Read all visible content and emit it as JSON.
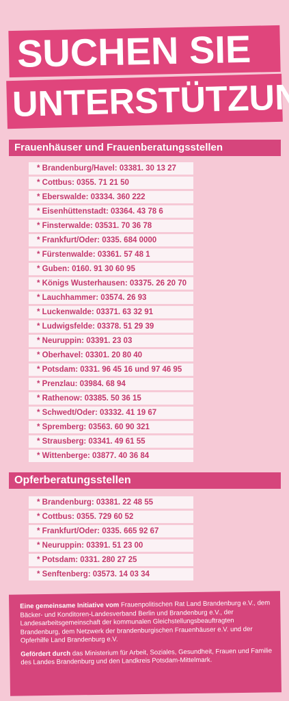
{
  "headline": {
    "line1": "SUCHEN SIE",
    "line2": "UNTERSTÜTZUNG?"
  },
  "section1": {
    "title": "Frauenhäuser und Frauenberatungsstellen",
    "items": [
      "* Brandenburg/Havel: 03381. 30 13 27",
      "* Cottbus: 0355. 71 21 50",
      "* Eberswalde: 03334. 360 222",
      "* Eisenhüttenstadt: 03364. 43 78 6",
      "* Finsterwalde: 03531. 70 36 78",
      "* Frankfurt/Oder: 0335. 684 0000",
      "* Fürstenwalde: 03361. 57 48 1",
      "* Guben: 0160. 91 30 60 95",
      "* Königs Wusterhausen: 03375. 26 20 70",
      "* Lauchhammer: 03574. 26 93",
      "* Luckenwalde: 03371. 63 32 91",
      "* Ludwigsfelde: 03378. 51 29 39",
      "* Neuruppin: 03391. 23 03",
      "* Oberhavel: 03301. 20 80 40",
      "* Potsdam: 0331. 96 45 16 und 97 46 95",
      "* Prenzlau: 03984. 68 94",
      "* Rathenow: 03385. 50 36 15",
      "* Schwedt/Oder: 03332. 41 19 67",
      "* Spremberg: 03563. 60 90 321",
      "* Strausberg: 03341. 49 61 55",
      "* Wittenberge: 03877. 40 36 84"
    ]
  },
  "section2": {
    "title": "Opferberatungsstellen",
    "items": [
      "* Brandenburg: 03381. 22 48 55",
      "* Cottbus: 0355. 729 60 52",
      "* Frankfurt/Oder: 0335. 665 92 67",
      "* Neuruppin: 03391. 51 23 00",
      "* Potsdam: 0331. 280 27 25",
      "* Senftenberg: 03573. 14 03 34"
    ]
  },
  "footer": {
    "initiative_label": "Eine gemeinsame Initiative vom",
    "initiative_text": "Frauenpolitischen Rat Land Brandenburg e.V., dem Bäcker- und Konditoren-Landesverband Berlin und Brandenburg e.V., der Landesarbeitsgemeinschaft der kommunalen Gleichstellungsbeauftragten Brandenburg, dem Netzwerk der brandenburgischen Frauenhäuser e.V. und der Opferhilfe Land Brandenburg e.V.",
    "funded_label": "Gefördert durch",
    "funded_text": "das Ministerium für Arbeit, Soziales, Gesundheit, Frauen und Familie des Landes Brandenburg und den Landkreis Potsdam-Mittelmark."
  },
  "colors": {
    "background": "#f6c9d6",
    "accent": "#e0457c",
    "bar": "#d6457c",
    "item_text": "#c4386c",
    "item_bg": "#fbf2f5"
  }
}
